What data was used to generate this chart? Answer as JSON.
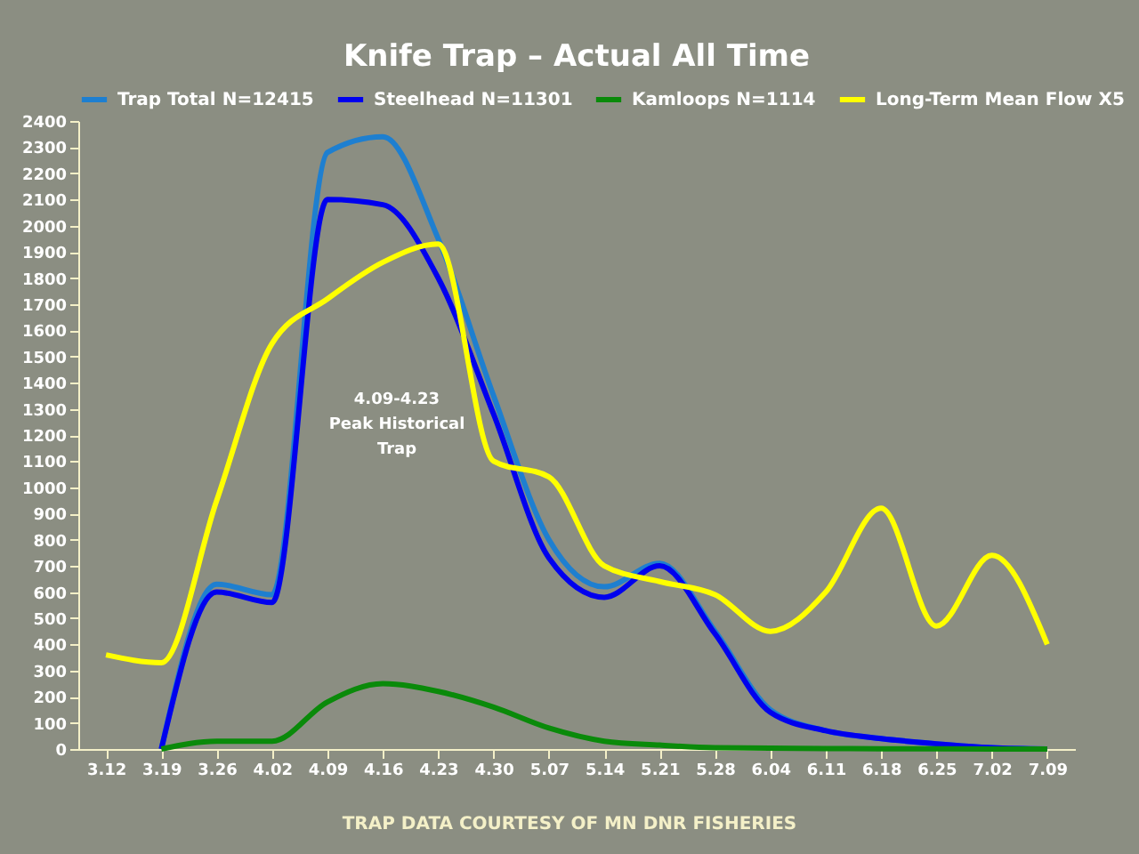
{
  "chart_data": {
    "type": "line",
    "title": "Knife Trap – Actual All Time",
    "categories": [
      "3.12",
      "3.19",
      "3.26",
      "4.02",
      "4.09",
      "4.16",
      "4.23",
      "4.30",
      "5.07",
      "5.14",
      "5.21",
      "5.28",
      "6.04",
      "6.11",
      "6.18",
      "6.25",
      "7.02",
      "7.09"
    ],
    "series": [
      {
        "name": "Trap Total N=12415",
        "color": "#1e7fd0",
        "values": [
          null,
          0,
          630,
          590,
          2280,
          2340,
          1950,
          1350,
          800,
          620,
          710,
          450,
          150,
          70,
          40,
          20,
          5,
          0
        ]
      },
      {
        "name": "Steelhead N=11301",
        "color": "#0000ee",
        "values": [
          null,
          0,
          600,
          560,
          2100,
          2080,
          1800,
          1280,
          730,
          580,
          700,
          440,
          140,
          70,
          40,
          20,
          5,
          0
        ]
      },
      {
        "name": "Kamloops N=1114",
        "color": "#0a8a0a",
        "values": [
          null,
          0,
          30,
          30,
          180,
          250,
          220,
          160,
          80,
          30,
          15,
          5,
          3,
          2,
          1,
          1,
          0,
          0
        ]
      },
      {
        "name": "Long-Term Mean Flow X5",
        "color": "#ffff00",
        "values": [
          360,
          330,
          950,
          1550,
          1720,
          1860,
          1930,
          1100,
          1040,
          700,
          640,
          590,
          450,
          600,
          920,
          470,
          740,
          400
        ]
      }
    ],
    "ylim": [
      0,
      2400
    ],
    "yticks": [
      0,
      100,
      200,
      300,
      400,
      500,
      600,
      700,
      800,
      900,
      1000,
      1100,
      1200,
      1300,
      1400,
      1500,
      1600,
      1700,
      1800,
      1900,
      2000,
      2100,
      2200,
      2300,
      2400
    ],
    "grid": false,
    "legend": "top",
    "marker": "none",
    "line_style": "solid",
    "annotations": [
      "4.09-4.23",
      "Peak Historical Trap",
      "TRAP DATA COURTESY OF MN DNR FISHERIES"
    ]
  }
}
